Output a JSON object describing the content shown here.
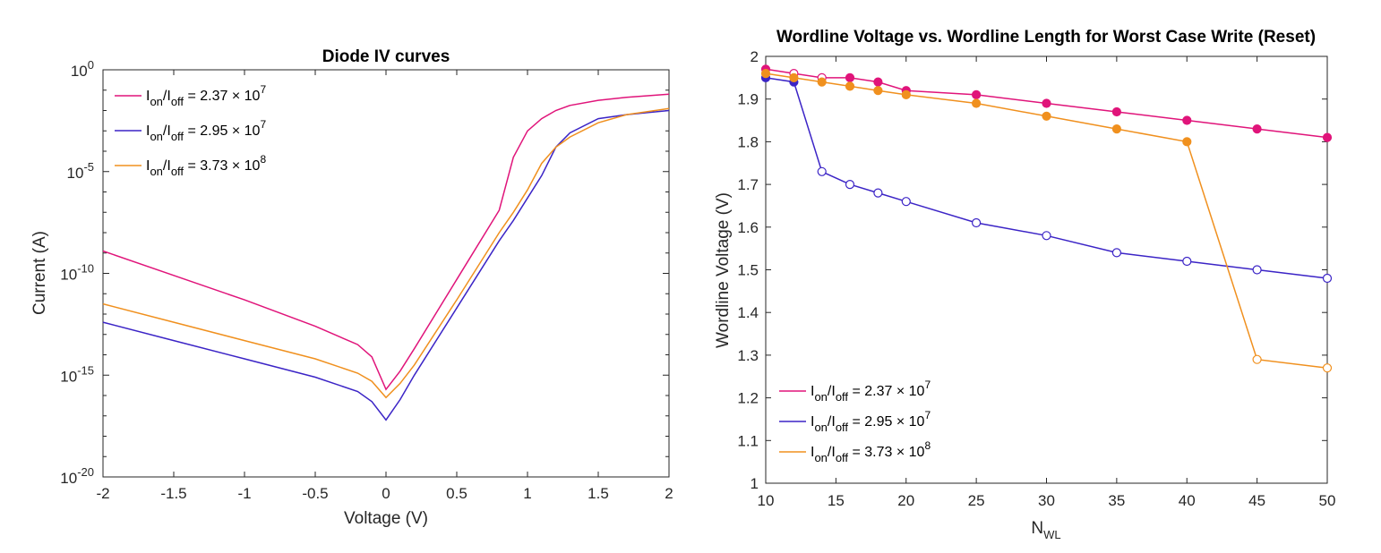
{
  "chart_data": [
    {
      "type": "line",
      "title": "Diode IV curves",
      "xlabel": "Voltage (V)",
      "ylabel": "Current (A)",
      "xlim": [
        -2,
        2
      ],
      "ylim_exp": [
        -20,
        0
      ],
      "y_scale": "log",
      "x_ticks": [
        "-2",
        "-1.5",
        "-1",
        "-0.5",
        "0",
        "0.5",
        "1",
        "1.5",
        "2"
      ],
      "y_ticks": [
        "10^0",
        "10^-5",
        "10^-10",
        "10^-15",
        "10^-20"
      ],
      "grid": false,
      "legend_position": "top-left",
      "series": [
        {
          "name": "I_on/I_off = 2.37 × 10^7",
          "legend": {
            "base": "I",
            "sub1": "on",
            "mid": "/I",
            "sub2": "off",
            "eq": " = 2.37 × 10",
            "sup": "7"
          },
          "color": "#e0147a",
          "x": [
            -2,
            -1.5,
            -1,
            -0.5,
            -0.2,
            -0.1,
            0,
            0.1,
            0.2,
            0.5,
            0.8,
            0.9,
            1,
            1.1,
            1.2,
            1.3,
            1.5,
            1.7,
            2
          ],
          "log10_y": [
            -8.9,
            -10.1,
            -11.3,
            -12.6,
            -13.5,
            -14.1,
            -15.7,
            -14.8,
            -13.7,
            -10.3,
            -6.9,
            -4.3,
            -3.0,
            -2.4,
            -2.0,
            -1.75,
            -1.5,
            -1.35,
            -1.2
          ]
        },
        {
          "name": "I_on/I_off = 2.95 × 10^7",
          "legend": {
            "base": "I",
            "sub1": "on",
            "mid": "/I",
            "sub2": "off",
            "eq": " = 2.95 × 10",
            "sup": "7"
          },
          "color": "#3b24c6",
          "x": [
            -2,
            -1.5,
            -1,
            -0.5,
            -0.2,
            -0.1,
            0,
            0.1,
            0.2,
            0.5,
            0.8,
            0.9,
            1,
            1.1,
            1.2,
            1.3,
            1.5,
            1.7,
            2
          ],
          "log10_y": [
            -12.4,
            -13.3,
            -14.2,
            -15.1,
            -15.8,
            -16.3,
            -17.2,
            -16.2,
            -15.0,
            -11.7,
            -8.4,
            -7.4,
            -6.3,
            -5.2,
            -3.8,
            -3.1,
            -2.4,
            -2.2,
            -2.0
          ]
        },
        {
          "name": "I_on/I_off = 3.73 × 10^8",
          "legend": {
            "base": "I",
            "sub1": "on",
            "mid": "/I",
            "sub2": "off",
            "eq": " = 3.73 × 10",
            "sup": "8"
          },
          "color": "#f0901e",
          "x": [
            -2,
            -1.5,
            -1,
            -0.5,
            -0.2,
            -0.1,
            0,
            0.1,
            0.2,
            0.5,
            0.8,
            0.9,
            1,
            1.1,
            1.2,
            1.3,
            1.5,
            1.7,
            2
          ],
          "log10_y": [
            -11.5,
            -12.4,
            -13.3,
            -14.2,
            -14.9,
            -15.3,
            -16.1,
            -15.4,
            -14.5,
            -11.3,
            -8.0,
            -7.0,
            -5.9,
            -4.6,
            -3.8,
            -3.3,
            -2.6,
            -2.2,
            -1.9
          ]
        }
      ]
    },
    {
      "type": "line",
      "title": "Wordline Voltage vs. Wordline Length for Worst Case Write (Reset)",
      "xlabel": {
        "base": "N",
        "sub": "WL"
      },
      "ylabel": "Wordline Voltage (V)",
      "xlim": [
        10,
        50
      ],
      "ylim": [
        1,
        2
      ],
      "x_ticks": [
        "10",
        "15",
        "20",
        "25",
        "30",
        "35",
        "40",
        "45",
        "50"
      ],
      "y_ticks": [
        "1",
        "1.1",
        "1.2",
        "1.3",
        "1.4",
        "1.5",
        "1.6",
        "1.7",
        "1.8",
        "1.9",
        "2"
      ],
      "grid": false,
      "legend_position": "bottom-left",
      "series": [
        {
          "name": "I_on/I_off = 2.37 × 10^7",
          "legend": {
            "base": "I",
            "sub1": "on",
            "mid": "/I",
            "sub2": "off",
            "eq": " = 2.37 × 10",
            "sup": "7"
          },
          "color": "#e0147a",
          "x": [
            10,
            12,
            14,
            16,
            18,
            20,
            25,
            30,
            35,
            40,
            45,
            50
          ],
          "y": [
            1.97,
            1.96,
            1.95,
            1.95,
            1.94,
            1.92,
            1.91,
            1.89,
            1.87,
            1.85,
            1.83,
            1.81
          ],
          "marker_fill": [
            true,
            false,
            false,
            true,
            true,
            true,
            true,
            true,
            true,
            true,
            true,
            true
          ]
        },
        {
          "name": "I_on/I_off = 2.95 × 10^7",
          "legend": {
            "base": "I",
            "sub1": "on",
            "mid": "/I",
            "sub2": "off",
            "eq": " = 2.95 × 10",
            "sup": "7"
          },
          "color": "#3b24c6",
          "x": [
            10,
            12,
            14,
            16,
            18,
            20,
            25,
            30,
            35,
            40,
            45,
            50
          ],
          "y": [
            1.95,
            1.94,
            1.73,
            1.7,
            1.68,
            1.66,
            1.61,
            1.58,
            1.54,
            1.52,
            1.5,
            1.48
          ],
          "marker_fill": [
            true,
            true,
            false,
            false,
            false,
            false,
            false,
            false,
            false,
            false,
            false,
            false
          ]
        },
        {
          "name": "I_on/I_off = 3.73 × 10^8",
          "legend": {
            "base": "I",
            "sub1": "on",
            "mid": "/I",
            "sub2": "off",
            "eq": " = 3.73 × 10",
            "sup": "8"
          },
          "color": "#f0901e",
          "x": [
            10,
            12,
            14,
            16,
            18,
            20,
            25,
            30,
            35,
            40,
            45,
            50
          ],
          "y": [
            1.96,
            1.95,
            1.94,
            1.93,
            1.92,
            1.91,
            1.89,
            1.86,
            1.83,
            1.8,
            1.29,
            1.27
          ],
          "marker_fill": [
            true,
            true,
            true,
            true,
            true,
            true,
            true,
            true,
            true,
            true,
            false,
            false
          ]
        }
      ]
    }
  ]
}
